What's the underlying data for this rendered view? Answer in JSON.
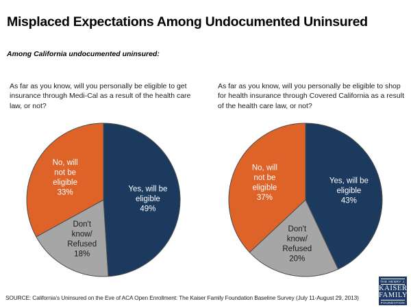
{
  "page": {
    "title": "Misplaced Expectations Among Undocumented Uninsured",
    "subtitle": "Among California undocumented uninsured:",
    "source": "SOURCE: California’s Uninsured on the Eve of ACA Open Enrollment: The Kaiser Family Foundation Baseline Survey (July 11-August 29, 2013)"
  },
  "logo": {
    "line1": "THE HENRY J.",
    "line2": "KAISER",
    "line3": "FAMILY",
    "line4": "FOUNDATION",
    "bg_color": "#1E3A64"
  },
  "colors": {
    "yes_blue": "#1B3A5E",
    "no_orange": "#DD6328",
    "dk_gray": "#A6A6A6",
    "slice_outline": "#4d4d4d"
  },
  "chart_data": [
    {
      "type": "pie",
      "question": "As far as you know, will you personally be eligible to get insurance through Medi-Cal as a result of the health care law, or not?",
      "start_angle": "top",
      "direction": "clockwise",
      "slices": [
        {
          "label": "Yes, will be eligible",
          "label_lines": [
            "Yes, will be",
            "eligible"
          ],
          "value": 49,
          "pct_label": "49%",
          "color": "#1B3A5E",
          "text_color": "#FFFFFF"
        },
        {
          "label": "Don't know/Refused",
          "label_lines": [
            "Don't",
            "know/",
            "Refused"
          ],
          "value": 18,
          "pct_label": "18%",
          "color": "#A6A6A6",
          "text_color": "#1A1A1A"
        },
        {
          "label": "No, will not be eligible",
          "label_lines": [
            "No, will",
            "not be",
            "eligible"
          ],
          "value": 33,
          "pct_label": "33%",
          "color": "#DD6328",
          "text_color": "#FFFFFF"
        }
      ]
    },
    {
      "type": "pie",
      "question": "As far as you know, will you personally be eligible to shop for health insurance through Covered California as a result of the health care law, or not?",
      "start_angle": "top",
      "direction": "clockwise",
      "slices": [
        {
          "label": "Yes, will be eligible",
          "label_lines": [
            "Yes, will be",
            "eligible"
          ],
          "value": 43,
          "pct_label": "43%",
          "color": "#1B3A5E",
          "text_color": "#FFFFFF"
        },
        {
          "label": "Don't know/Refused",
          "label_lines": [
            "Don't",
            "know/",
            "Refused"
          ],
          "value": 20,
          "pct_label": "20%",
          "color": "#A6A6A6",
          "text_color": "#1A1A1A"
        },
        {
          "label": "No, will not be eligible",
          "label_lines": [
            "No, will",
            "not be",
            "eligible"
          ],
          "value": 37,
          "pct_label": "37%",
          "color": "#DD6328",
          "text_color": "#FFFFFF"
        }
      ]
    }
  ]
}
